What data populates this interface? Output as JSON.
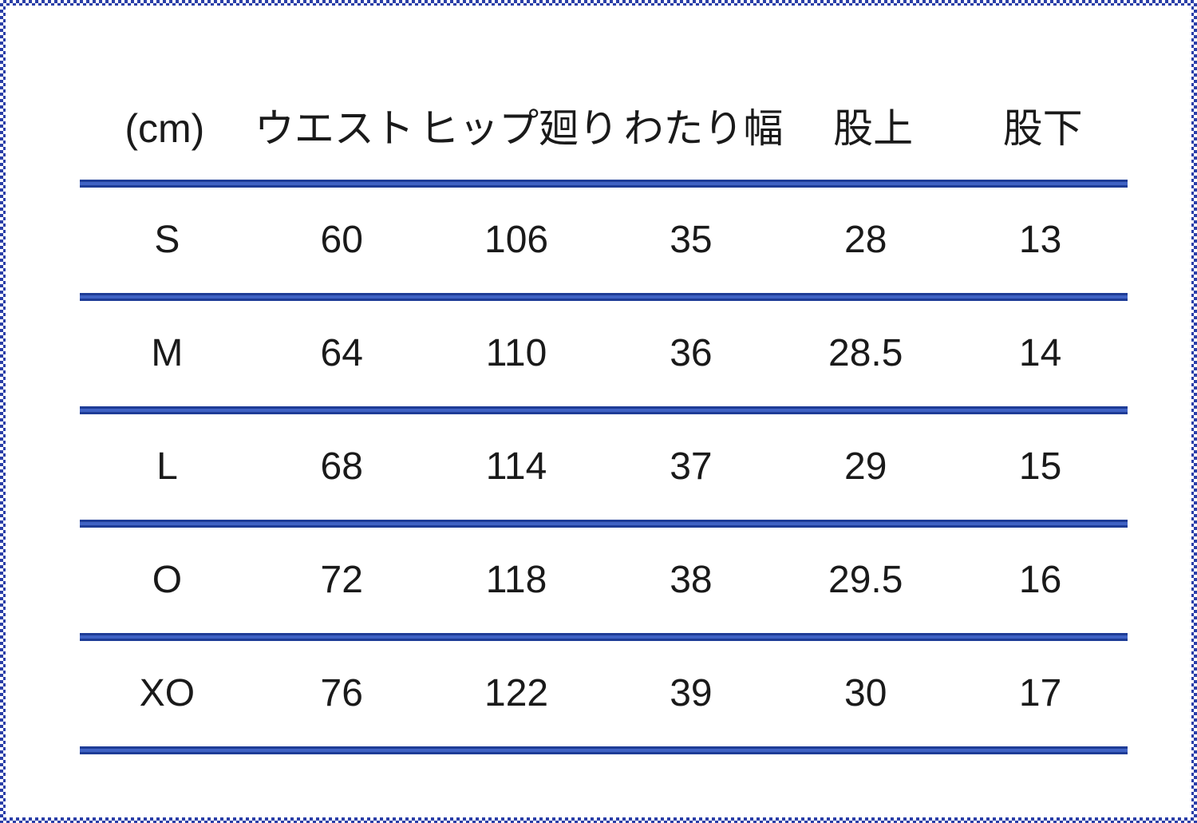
{
  "chart_data": {
    "type": "table",
    "unit": "(cm)",
    "columns": [
      "(cm)",
      "ウエスト",
      "ヒップ廻り",
      "わたり幅",
      "股上",
      "股下"
    ],
    "rows": [
      [
        "S",
        60,
        106,
        35,
        28,
        13
      ],
      [
        "M",
        64,
        110,
        36,
        28.5,
        14
      ],
      [
        "L",
        68,
        114,
        37,
        29,
        15
      ],
      [
        "O",
        72,
        118,
        38,
        29.5,
        16
      ],
      [
        "XO",
        76,
        122,
        39,
        30,
        17
      ]
    ]
  },
  "colors": {
    "border_blue": "#2b3fa8",
    "line_dark": "#1e3c96",
    "line_mid": "#3f62c4",
    "text": "#1a1a1a",
    "background": "#ffffff"
  }
}
